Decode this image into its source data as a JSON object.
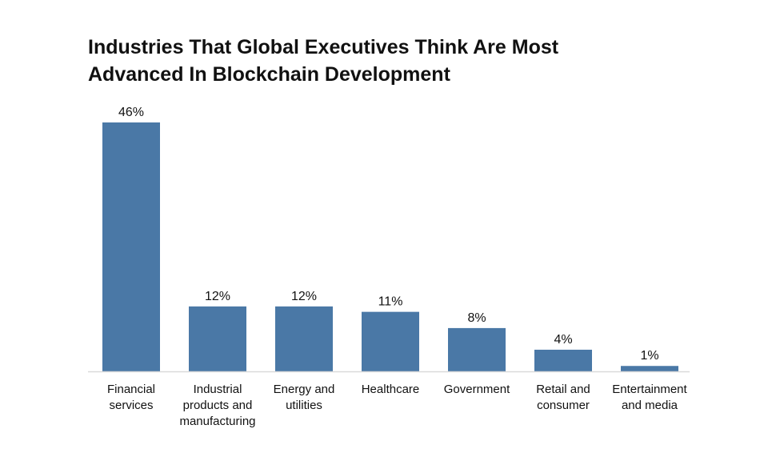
{
  "chart_data": {
    "type": "bar",
    "title_lines": [
      "Industries That Global Executives Think Are Most",
      "Advanced In Blockchain Development"
    ],
    "categories": [
      [
        "Financial",
        "services"
      ],
      [
        "Industrial",
        "products and",
        "manufacturing"
      ],
      [
        "Energy and",
        "utilities"
      ],
      [
        "Healthcare"
      ],
      [
        "Government"
      ],
      [
        "Retail and",
        "consumer"
      ],
      [
        "Entertainment",
        "and media"
      ]
    ],
    "values": [
      46,
      12,
      12,
      11,
      8,
      4,
      1
    ],
    "data_labels": [
      "46%",
      "12%",
      "12%",
      "11%",
      "8%",
      "4%",
      "1%"
    ],
    "unit": "%",
    "ylim": [
      0,
      46
    ],
    "grid": false,
    "legend": "none",
    "colors": {
      "bar": "#4a78a6",
      "baseline": "#d9d9d9"
    }
  }
}
